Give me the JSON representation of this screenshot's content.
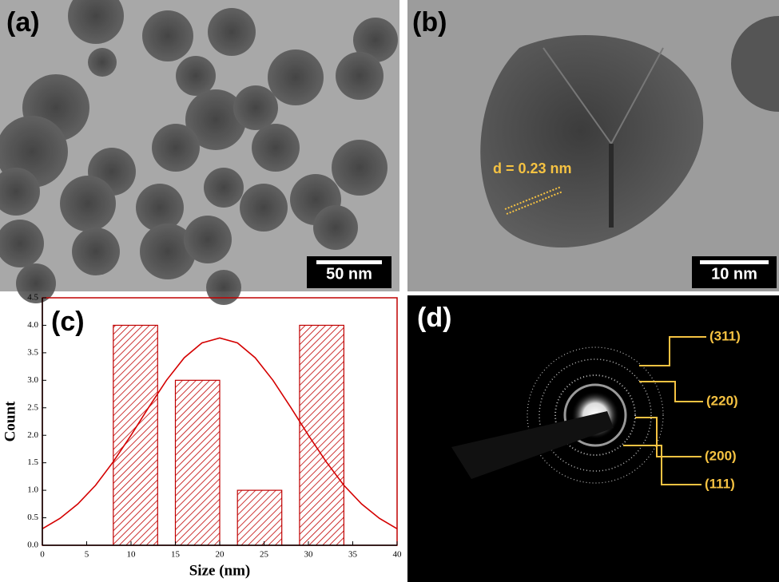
{
  "panels": [
    {
      "label": "(a)",
      "scale_bar": "50 nm"
    },
    {
      "label": "(b)",
      "scale_bar": "10 nm",
      "annotation": "d =  0.23 nm"
    },
    {
      "label": "(d)",
      "rings": [
        "(311)",
        "(220)",
        "(200)",
        "(111)"
      ]
    }
  ],
  "chart_data": {
    "type": "histogram",
    "panel_label": "(c)",
    "x_label": "Size (nm)",
    "y_label": "Count",
    "bins": [
      7,
      14,
      21,
      28,
      35
    ],
    "values": [
      4,
      3,
      1,
      4
    ],
    "color": "#c00000",
    "fit": {
      "x": [
        0,
        2,
        4,
        6,
        8,
        10,
        12,
        14,
        16,
        18,
        20,
        22,
        24,
        26,
        28,
        30,
        32,
        34,
        36,
        38,
        40
      ],
      "values": [
        0.3,
        0.49,
        0.75,
        1.09,
        1.52,
        2.0,
        2.51,
        3.0,
        3.41,
        3.68,
        3.77,
        3.68,
        3.41,
        3.0,
        2.51,
        2.0,
        1.52,
        1.09,
        0.75,
        0.49,
        0.3
      ],
      "color": "#d40000"
    },
    "xlim": [
      0,
      40
    ],
    "xticks": [
      0,
      5,
      10,
      15,
      20,
      25,
      30,
      35,
      40
    ],
    "ylim": [
      0,
      4.5
    ],
    "yticks": [
      {
        "value": 0,
        "label": "0.0"
      },
      0.5,
      {
        "value": 1,
        "label": "1.0"
      },
      1.5,
      {
        "value": 2,
        "label": "2.0"
      },
      2.5,
      {
        "value": 3,
        "label": "3.0"
      },
      3.5,
      {
        "value": 4,
        "label": "4.0"
      },
      4.5
    ]
  }
}
